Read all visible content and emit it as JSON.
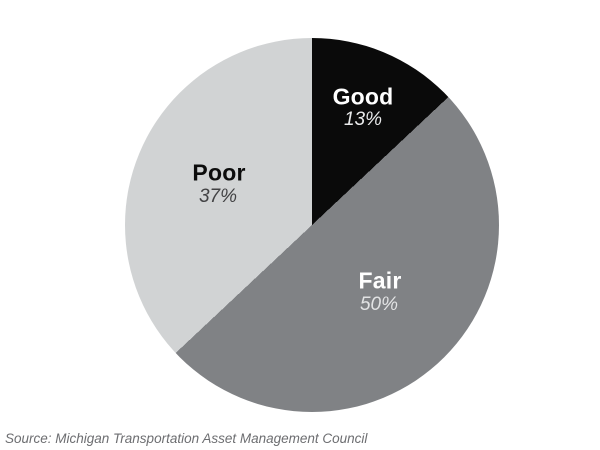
{
  "chart_data": {
    "type": "pie",
    "title": "",
    "categories": [
      "Good",
      "Fair",
      "Poor"
    ],
    "values": [
      13,
      50,
      37
    ],
    "slices": [
      {
        "label": "Good",
        "value": 13,
        "pct_label": "13%",
        "color": "#0a0a0a",
        "text_color": "#ffffff"
      },
      {
        "label": "Fair",
        "value": 50,
        "pct_label": "50%",
        "color": "#808285",
        "text_color": "#ffffff"
      },
      {
        "label": "Poor",
        "value": 37,
        "pct_label": "37%",
        "color": "#d1d3d4",
        "text_color": "#0c0c0c"
      }
    ],
    "start_angle_deg": 0,
    "direction": "clockwise",
    "legend_position": "none",
    "labels_inside": true
  },
  "footer": {
    "source": "Source: Michigan Transportation Asset Management Council"
  }
}
